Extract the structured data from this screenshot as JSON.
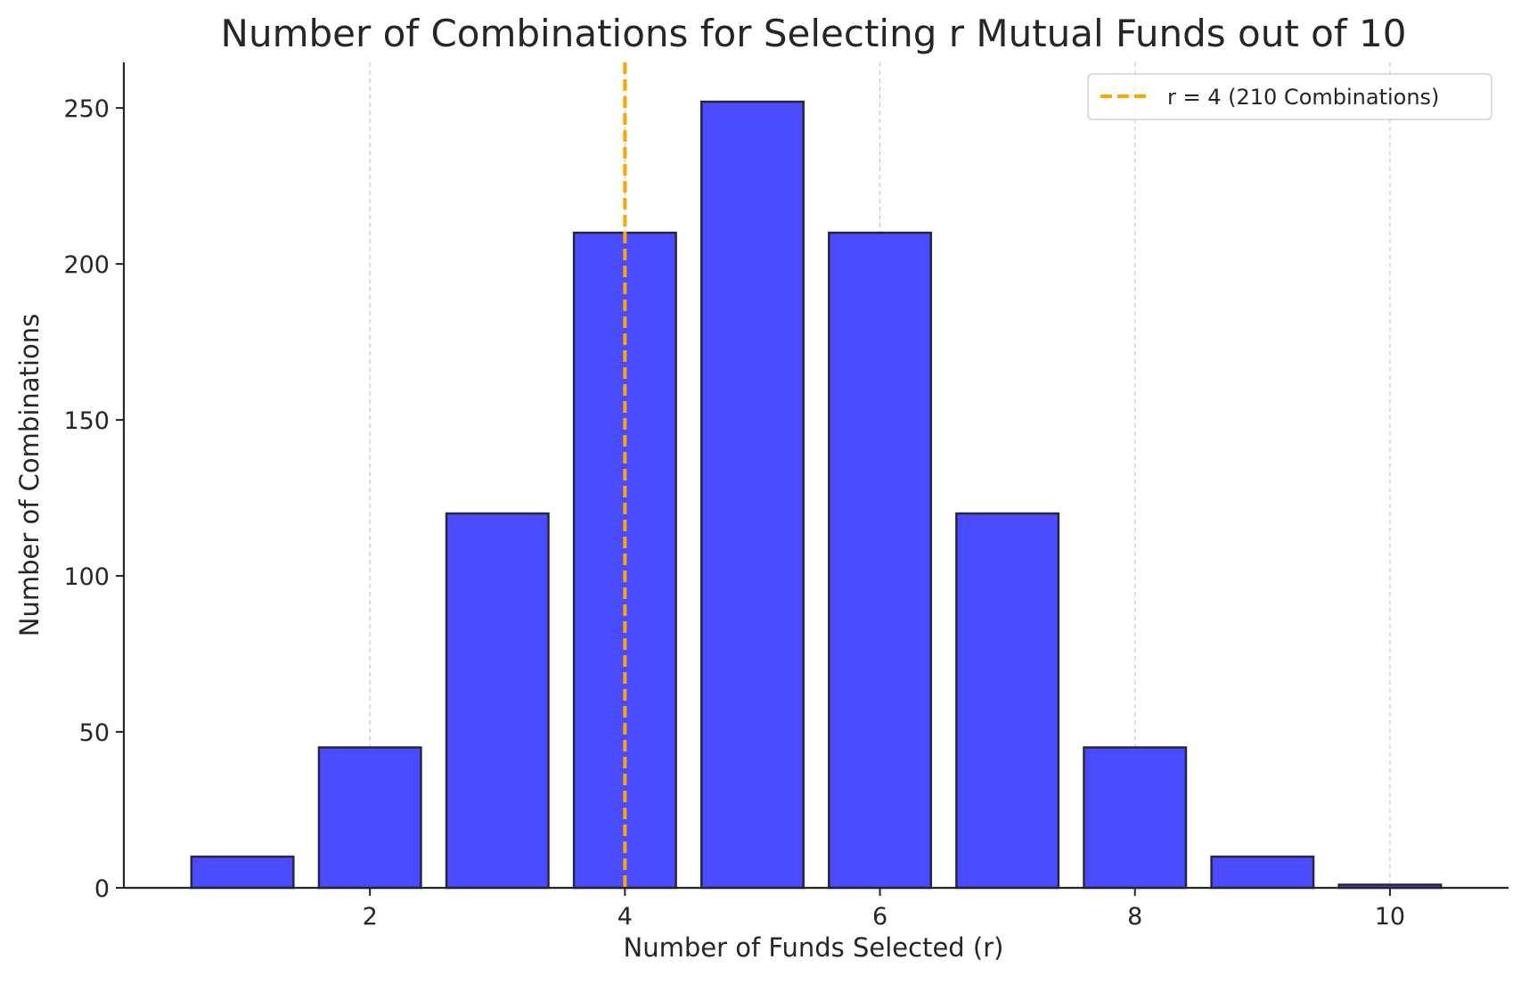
{
  "chart_data": {
    "type": "bar",
    "title": "Number of Combinations for Selecting r Mutual Funds out of 10",
    "xlabel": "Number of Funds Selected (r)",
    "ylabel": "Number of Combinations",
    "categories": [
      1,
      2,
      3,
      4,
      5,
      6,
      7,
      8,
      9,
      10
    ],
    "values": [
      10,
      45,
      120,
      210,
      252,
      210,
      120,
      45,
      10,
      1
    ],
    "xlim": [
      0.07,
      10.93
    ],
    "ylim": [
      0,
      264.6
    ],
    "xticks": [
      2,
      4,
      6,
      8,
      10
    ],
    "xtick_labels": [
      "2",
      "4",
      "6",
      "8",
      "10"
    ],
    "yticks": [
      0,
      50,
      100,
      150,
      200,
      250
    ],
    "ytick_labels": [
      "0",
      "50",
      "100",
      "150",
      "200",
      "250"
    ],
    "bar_width": 0.8,
    "grid": "x-axis only, dashed",
    "legend_position": "top-right",
    "colors": {
      "bar_fill": "#4b4bff",
      "bar_edge": "#262640",
      "reference_line": "#ffa500",
      "grid": "#c8c8c8",
      "axis": "#262626"
    },
    "reference_line": {
      "x": 4,
      "style": "dashed",
      "label": "r = 4 (210 Combinations)"
    }
  }
}
